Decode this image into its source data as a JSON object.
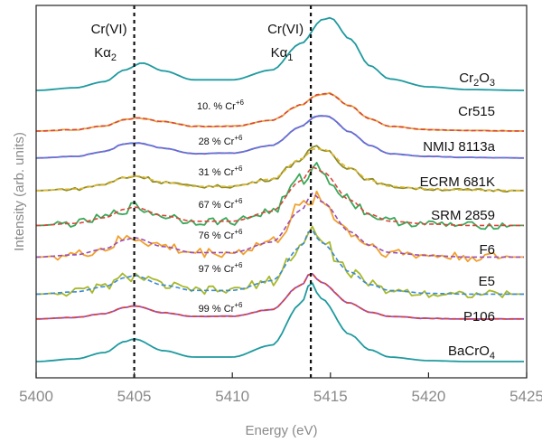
{
  "chart_data": {
    "type": "line",
    "xlabel": "Energy (eV)",
    "ylabel": "Intensity (arb. units)",
    "xlim": [
      5400,
      5425
    ],
    "xticks": [
      5400,
      5405,
      5410,
      5415,
      5420,
      5425
    ],
    "xtick_labels": [
      "5400",
      "5405",
      "5410",
      "5415",
      "5420",
      "5425"
    ],
    "vertical_lines": [
      {
        "x": 5405,
        "label_top": "Cr(VI)",
        "label_bottom": "Kα",
        "label_sub": "2"
      },
      {
        "x": 5414,
        "label_top": "Cr(VI)",
        "label_bottom": "Kα",
        "label_sub": "1"
      }
    ],
    "series": [
      {
        "name": "Cr2O3",
        "label_main": "Cr",
        "label_sub1": "2",
        "label_mid": "O",
        "label_sub2": "3",
        "color": "#1f9a9f",
        "style": "solid",
        "noise": 0,
        "data": [
          [
            5400,
            0.02
          ],
          [
            5402,
            0.05
          ],
          [
            5403.5,
            0.12
          ],
          [
            5404.5,
            0.25
          ],
          [
            5405.4,
            0.33
          ],
          [
            5406.5,
            0.24
          ],
          [
            5408,
            0.14
          ],
          [
            5410,
            0.14
          ],
          [
            5412,
            0.25
          ],
          [
            5413.5,
            0.55
          ],
          [
            5414.6,
            0.82
          ],
          [
            5415,
            0.84
          ],
          [
            5416,
            0.6
          ],
          [
            5417,
            0.3
          ],
          [
            5418,
            0.15
          ],
          [
            5420,
            0.06
          ],
          [
            5422,
            0.03
          ],
          [
            5425,
            0.02
          ]
        ]
      },
      {
        "name": "Cr515",
        "label": "Cr515",
        "pct": "10. % Cr",
        "pct_sup": "+6",
        "color": "#e8a23a",
        "style": "solid",
        "noise": 0.01,
        "data": [
          [
            5400,
            0.02
          ],
          [
            5402,
            0.05
          ],
          [
            5403.5,
            0.13
          ],
          [
            5404.5,
            0.26
          ],
          [
            5405.2,
            0.3
          ],
          [
            5406.5,
            0.22
          ],
          [
            5408,
            0.12
          ],
          [
            5410,
            0.12
          ],
          [
            5412,
            0.25
          ],
          [
            5413.5,
            0.58
          ],
          [
            5414.4,
            0.8
          ],
          [
            5414.9,
            0.82
          ],
          [
            5416,
            0.55
          ],
          [
            5417,
            0.28
          ],
          [
            5418,
            0.12
          ],
          [
            5420,
            0.05
          ],
          [
            5422,
            0.03
          ],
          [
            5425,
            0.02
          ]
        ]
      },
      {
        "name": "NMIJ 8113a",
        "label": "NMIJ 8113a",
        "pct": "28 % Cr",
        "pct_sup": "+6",
        "color": "#7a5cc8",
        "style": "solid",
        "noise": 0.005,
        "data": [
          [
            5400,
            0.02
          ],
          [
            5402,
            0.05
          ],
          [
            5403.5,
            0.14
          ],
          [
            5404.5,
            0.28
          ],
          [
            5405.2,
            0.3
          ],
          [
            5406.5,
            0.2
          ],
          [
            5408,
            0.1
          ],
          [
            5410,
            0.11
          ],
          [
            5412,
            0.25
          ],
          [
            5413.5,
            0.6
          ],
          [
            5414.3,
            0.8
          ],
          [
            5414.8,
            0.8
          ],
          [
            5416,
            0.5
          ],
          [
            5417,
            0.25
          ],
          [
            5418,
            0.1
          ],
          [
            5420,
            0.05
          ],
          [
            5422,
            0.03
          ],
          [
            5425,
            0.02
          ]
        ]
      },
      {
        "name": "ECRM 681K",
        "label": "ECRM 681K",
        "pct": "31 % Cr",
        "pct_sup": "+6",
        "color": "#8c8c2a",
        "style": "solid",
        "noise": 0.025,
        "data": [
          [
            5400,
            0.02
          ],
          [
            5402,
            0.05
          ],
          [
            5403.5,
            0.14
          ],
          [
            5404.5,
            0.27
          ],
          [
            5405.1,
            0.3
          ],
          [
            5406.5,
            0.18
          ],
          [
            5408,
            0.1
          ],
          [
            5410,
            0.1
          ],
          [
            5412,
            0.24
          ],
          [
            5413.5,
            0.62
          ],
          [
            5414.2,
            0.82
          ],
          [
            5414.7,
            0.8
          ],
          [
            5416,
            0.45
          ],
          [
            5417,
            0.22
          ],
          [
            5418,
            0.1
          ],
          [
            5420,
            0.05
          ],
          [
            5422,
            0.03
          ],
          [
            5425,
            0.02
          ]
        ]
      },
      {
        "name": "SRM 2859",
        "label": "SRM 2859",
        "pct": "67 % Cr",
        "pct_sup": "+6",
        "color": "#3aa85a",
        "style": "solid",
        "noise": 0.05,
        "data": [
          [
            5400,
            0.02
          ],
          [
            5402,
            0.05
          ],
          [
            5403.5,
            0.13
          ],
          [
            5404.5,
            0.25
          ],
          [
            5405,
            0.28
          ],
          [
            5406.5,
            0.16
          ],
          [
            5408,
            0.08
          ],
          [
            5410,
            0.08
          ],
          [
            5412,
            0.22
          ],
          [
            5413.5,
            0.65
          ],
          [
            5414.1,
            0.85
          ],
          [
            5414.6,
            0.78
          ],
          [
            5416,
            0.38
          ],
          [
            5417,
            0.18
          ],
          [
            5418,
            0.08
          ],
          [
            5420,
            0.04
          ],
          [
            5422,
            0.02
          ],
          [
            5425,
            0.02
          ]
        ]
      },
      {
        "name": "F6",
        "label": "F6",
        "pct": "76 % Cr",
        "pct_sup": "+6",
        "color": "#f0a02c",
        "style": "solid",
        "noise": 0.06,
        "data": [
          [
            5400,
            0.02
          ],
          [
            5402,
            0.05
          ],
          [
            5403.5,
            0.13
          ],
          [
            5404.5,
            0.25
          ],
          [
            5405,
            0.28
          ],
          [
            5406.5,
            0.16
          ],
          [
            5408,
            0.08
          ],
          [
            5410,
            0.08
          ],
          [
            5412,
            0.22
          ],
          [
            5413.5,
            0.65
          ],
          [
            5414.1,
            0.88
          ],
          [
            5414.6,
            0.76
          ],
          [
            5416,
            0.36
          ],
          [
            5417,
            0.18
          ],
          [
            5418,
            0.08
          ],
          [
            5420,
            0.04
          ],
          [
            5422,
            0.02
          ],
          [
            5425,
            0.02
          ]
        ]
      },
      {
        "name": "E5",
        "label": "E5",
        "pct": "97 % Cr",
        "pct_sup": "+6",
        "color": "#a8b82a",
        "style": "solid",
        "noise": 0.05,
        "data": [
          [
            5400,
            0.02
          ],
          [
            5402,
            0.05
          ],
          [
            5403.5,
            0.12
          ],
          [
            5404.5,
            0.24
          ],
          [
            5405,
            0.27
          ],
          [
            5406.5,
            0.14
          ],
          [
            5408,
            0.07
          ],
          [
            5410,
            0.07
          ],
          [
            5412,
            0.2
          ],
          [
            5413.5,
            0.66
          ],
          [
            5414,
            0.9
          ],
          [
            5414.5,
            0.72
          ],
          [
            5416,
            0.32
          ],
          [
            5417,
            0.15
          ],
          [
            5418,
            0.07
          ],
          [
            5420,
            0.03
          ],
          [
            5422,
            0.02
          ],
          [
            5425,
            0.02
          ]
        ]
      },
      {
        "name": "P106",
        "label": "P106",
        "pct": "99 % Cr",
        "pct_sup": "+6",
        "color": "#9a4fb8",
        "style": "solid",
        "noise": 0.005,
        "data": [
          [
            5400,
            0.02
          ],
          [
            5402,
            0.05
          ],
          [
            5403.5,
            0.12
          ],
          [
            5404.5,
            0.24
          ],
          [
            5405,
            0.27
          ],
          [
            5406.5,
            0.14
          ],
          [
            5408,
            0.07
          ],
          [
            5410,
            0.07
          ],
          [
            5412,
            0.2
          ],
          [
            5413.5,
            0.66
          ],
          [
            5414,
            0.9
          ],
          [
            5414.5,
            0.72
          ],
          [
            5416,
            0.32
          ],
          [
            5417,
            0.15
          ],
          [
            5418,
            0.07
          ],
          [
            5420,
            0.03
          ],
          [
            5422,
            0.02
          ],
          [
            5425,
            0.02
          ]
        ]
      },
      {
        "name": "BaCrO4",
        "label_main": "BaCrO",
        "label_sub": "4",
        "color": "#1f9a9f",
        "style": "solid",
        "noise": 0,
        "data": [
          [
            5400,
            0.02
          ],
          [
            5402,
            0.05
          ],
          [
            5403.5,
            0.12
          ],
          [
            5404.5,
            0.24
          ],
          [
            5405,
            0.27
          ],
          [
            5406.5,
            0.14
          ],
          [
            5408,
            0.07
          ],
          [
            5410,
            0.07
          ],
          [
            5412,
            0.2
          ],
          [
            5413.5,
            0.66
          ],
          [
            5414,
            0.9
          ],
          [
            5414.5,
            0.72
          ],
          [
            5416,
            0.32
          ],
          [
            5417,
            0.15
          ],
          [
            5418,
            0.07
          ],
          [
            5420,
            0.03
          ],
          [
            5422,
            0.02
          ],
          [
            5425,
            0.02
          ]
        ]
      }
    ],
    "fits": [
      {
        "series": "Cr515",
        "color": "#d9463a",
        "style": "dashed"
      },
      {
        "series": "NMIJ 8113a",
        "color": "#5a7fd8",
        "style": "dashed"
      },
      {
        "series": "ECRM 681K",
        "color": "#e0b830",
        "style": "dashed"
      },
      {
        "series": "SRM 2859",
        "color": "#d9463a",
        "style": "dashed"
      },
      {
        "series": "F6",
        "color": "#9a4fb8",
        "style": "dashed"
      },
      {
        "series": "E5",
        "color": "#3a8ad8",
        "style": "dashed"
      },
      {
        "series": "P106",
        "color": "#d9463a",
        "style": "dashed"
      }
    ]
  }
}
